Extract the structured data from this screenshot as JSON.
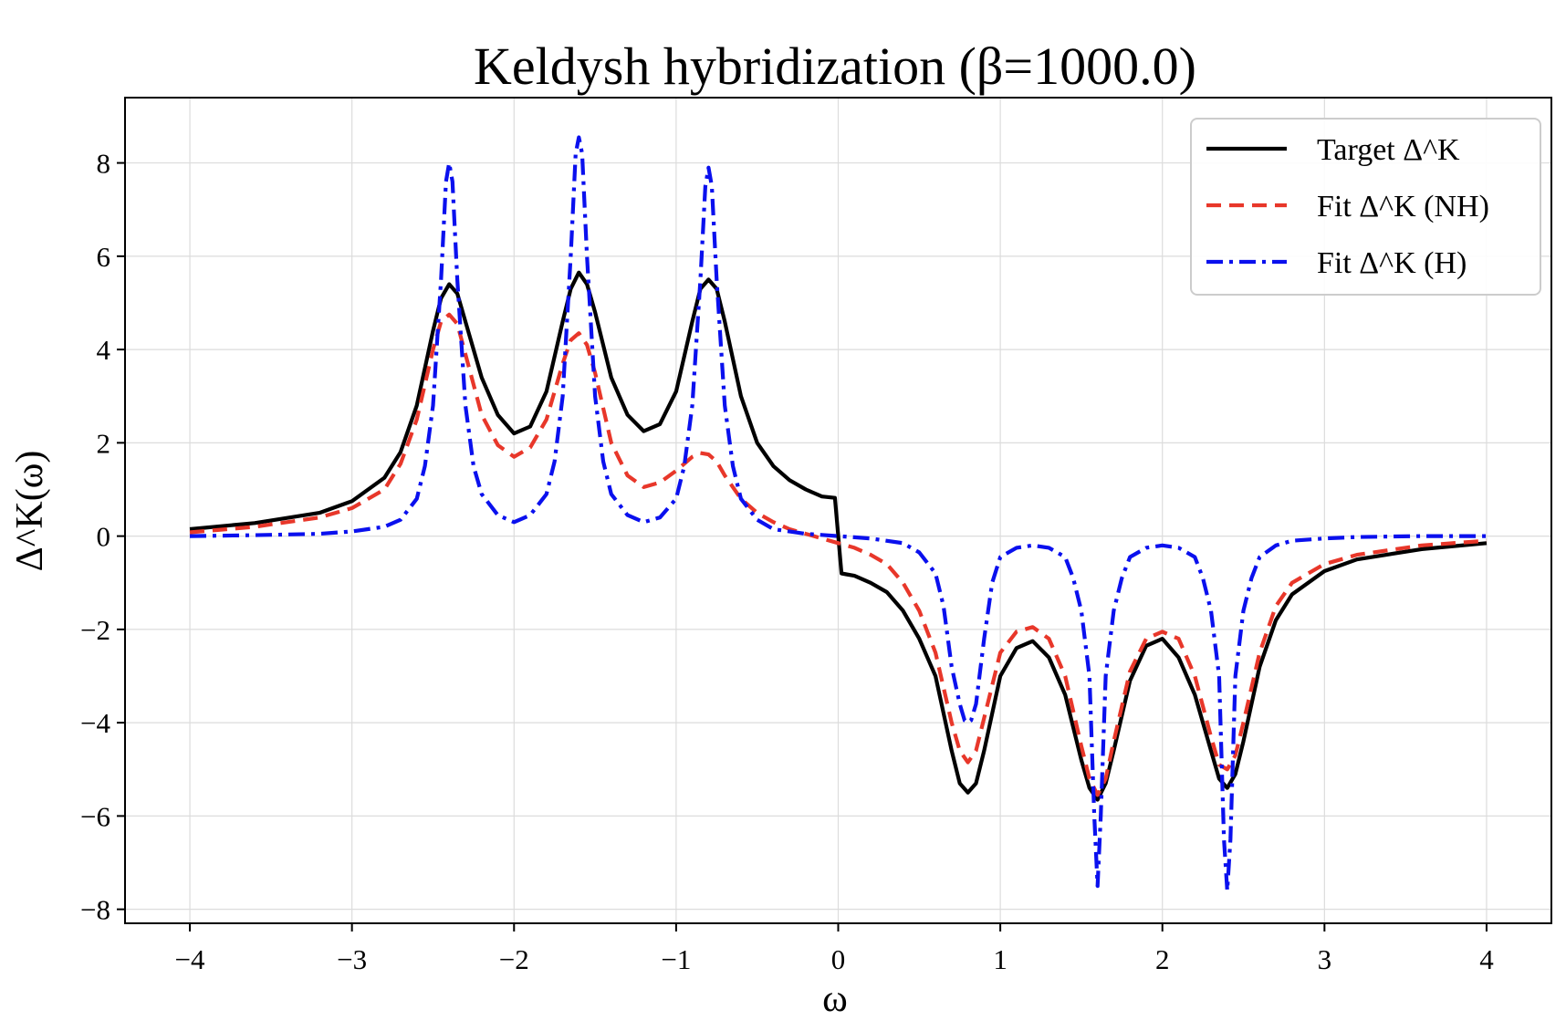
{
  "chart_data": {
    "type": "line",
    "title": "Keldysh hybridization (β=1000.0)",
    "xlabel": "ω",
    "ylabel": "Δ^K(ω)",
    "xlim": [
      -4.4,
      4.4
    ],
    "ylim": [
      -8.3,
      9.4
    ],
    "xticks": [
      -4,
      -3,
      -2,
      -1,
      0,
      1,
      2,
      3,
      4
    ],
    "xtick_labels": [
      "−4",
      "−3",
      "−2",
      "−1",
      "0",
      "1",
      "2",
      "3",
      "4"
    ],
    "yticks": [
      -8,
      -6,
      -4,
      -2,
      0,
      2,
      4,
      6,
      8
    ],
    "ytick_labels": [
      "−8",
      "−6",
      "−4",
      "−2",
      "0",
      "2",
      "4",
      "6",
      "8"
    ],
    "grid": true,
    "legend_position": "top-right",
    "series": [
      {
        "name": "Target Δ^K",
        "color": "#000000",
        "style": "solid",
        "x": [
          -4.0,
          -3.6,
          -3.2,
          -3.0,
          -2.8,
          -2.7,
          -2.6,
          -2.5,
          -2.45,
          -2.4,
          -2.35,
          -2.3,
          -2.2,
          -2.1,
          -2.0,
          -1.9,
          -1.8,
          -1.7,
          -1.65,
          -1.6,
          -1.55,
          -1.5,
          -1.4,
          -1.3,
          -1.2,
          -1.1,
          -1.0,
          -0.9,
          -0.85,
          -0.8,
          -0.75,
          -0.7,
          -0.6,
          -0.5,
          -0.4,
          -0.3,
          -0.2,
          -0.1,
          -0.02,
          0.02,
          0.05,
          0.1,
          0.2,
          0.3,
          0.4,
          0.5,
          0.6,
          0.7,
          0.75,
          0.8,
          0.85,
          0.9,
          1.0,
          1.1,
          1.2,
          1.3,
          1.4,
          1.5,
          1.55,
          1.6,
          1.65,
          1.7,
          1.8,
          1.9,
          2.0,
          2.1,
          2.2,
          2.3,
          2.35,
          2.4,
          2.45,
          2.5,
          2.6,
          2.7,
          2.8,
          3.0,
          3.2,
          3.6,
          4.0
        ],
        "y": [
          0.15,
          0.28,
          0.5,
          0.75,
          1.25,
          1.8,
          2.8,
          4.4,
          5.1,
          5.4,
          5.2,
          4.6,
          3.4,
          2.6,
          2.2,
          2.35,
          3.1,
          4.6,
          5.3,
          5.65,
          5.4,
          4.8,
          3.4,
          2.6,
          2.25,
          2.4,
          3.1,
          4.6,
          5.3,
          5.5,
          5.3,
          4.6,
          3.0,
          2.0,
          1.5,
          1.2,
          1.0,
          0.85,
          0.82,
          -0.8,
          -0.82,
          -0.85,
          -1.0,
          -1.2,
          -1.6,
          -2.2,
          -3.0,
          -4.6,
          -5.3,
          -5.5,
          -5.3,
          -4.6,
          -3.0,
          -2.4,
          -2.25,
          -2.6,
          -3.4,
          -4.8,
          -5.4,
          -5.65,
          -5.3,
          -4.6,
          -3.1,
          -2.35,
          -2.2,
          -2.6,
          -3.4,
          -4.6,
          -5.2,
          -5.4,
          -5.1,
          -4.4,
          -2.8,
          -1.8,
          -1.25,
          -0.75,
          -0.5,
          -0.28,
          -0.15
        ]
      },
      {
        "name": "Fit Δ^K (NH)",
        "color": "#e8372a",
        "style": "dashed",
        "x": [
          -4.0,
          -3.6,
          -3.2,
          -3.0,
          -2.8,
          -2.7,
          -2.6,
          -2.5,
          -2.45,
          -2.4,
          -2.35,
          -2.3,
          -2.2,
          -2.1,
          -2.0,
          -1.9,
          -1.8,
          -1.7,
          -1.65,
          -1.6,
          -1.55,
          -1.5,
          -1.4,
          -1.3,
          -1.2,
          -1.1,
          -1.0,
          -0.9,
          -0.85,
          -0.8,
          -0.75,
          -0.7,
          -0.6,
          -0.5,
          -0.4,
          -0.3,
          -0.2,
          -0.1,
          0.0,
          0.1,
          0.2,
          0.3,
          0.4,
          0.5,
          0.6,
          0.7,
          0.75,
          0.8,
          0.85,
          0.9,
          1.0,
          1.1,
          1.2,
          1.3,
          1.4,
          1.5,
          1.55,
          1.6,
          1.65,
          1.7,
          1.8,
          1.9,
          2.0,
          2.1,
          2.2,
          2.3,
          2.35,
          2.4,
          2.45,
          2.5,
          2.6,
          2.7,
          2.8,
          3.0,
          3.2,
          3.6,
          4.0
        ],
        "y": [
          0.08,
          0.2,
          0.4,
          0.6,
          1.0,
          1.55,
          2.5,
          4.0,
          4.6,
          4.75,
          4.55,
          3.9,
          2.6,
          1.95,
          1.7,
          1.9,
          2.5,
          3.7,
          4.2,
          4.35,
          4.1,
          3.5,
          2.0,
          1.3,
          1.05,
          1.15,
          1.4,
          1.7,
          1.78,
          1.75,
          1.6,
          1.3,
          0.8,
          0.5,
          0.3,
          0.15,
          0.05,
          -0.05,
          -0.15,
          -0.25,
          -0.4,
          -0.6,
          -1.0,
          -1.6,
          -2.5,
          -4.0,
          -4.6,
          -4.85,
          -4.6,
          -3.9,
          -2.5,
          -2.05,
          -1.95,
          -2.2,
          -3.0,
          -4.5,
          -5.2,
          -5.55,
          -5.2,
          -4.4,
          -2.9,
          -2.2,
          -2.05,
          -2.2,
          -3.0,
          -4.3,
          -4.9,
          -5.0,
          -4.7,
          -4.0,
          -2.5,
          -1.5,
          -1.0,
          -0.6,
          -0.4,
          -0.2,
          -0.1
        ]
      },
      {
        "name": "Fit Δ^K (H)",
        "color": "#0a10ee",
        "style": "dashdot",
        "x": [
          -4.0,
          -3.6,
          -3.2,
          -3.0,
          -2.8,
          -2.7,
          -2.6,
          -2.55,
          -2.5,
          -2.45,
          -2.42,
          -2.4,
          -2.38,
          -2.35,
          -2.3,
          -2.25,
          -2.2,
          -2.1,
          -2.0,
          -1.9,
          -1.8,
          -1.75,
          -1.7,
          -1.65,
          -1.62,
          -1.6,
          -1.58,
          -1.55,
          -1.5,
          -1.45,
          -1.4,
          -1.3,
          -1.2,
          -1.1,
          -1.0,
          -0.95,
          -0.9,
          -0.85,
          -0.82,
          -0.8,
          -0.78,
          -0.75,
          -0.7,
          -0.65,
          -0.6,
          -0.5,
          -0.4,
          -0.2,
          0.0,
          0.2,
          0.4,
          0.5,
          0.6,
          0.65,
          0.7,
          0.75,
          0.78,
          0.8,
          0.82,
          0.85,
          0.9,
          0.95,
          1.0,
          1.1,
          1.2,
          1.3,
          1.4,
          1.45,
          1.5,
          1.55,
          1.58,
          1.6,
          1.62,
          1.65,
          1.7,
          1.75,
          1.8,
          1.9,
          2.0,
          2.1,
          2.2,
          2.25,
          2.3,
          2.35,
          2.38,
          2.4,
          2.42,
          2.45,
          2.5,
          2.55,
          2.6,
          2.7,
          2.8,
          3.0,
          3.2,
          3.6,
          4.0
        ],
        "y": [
          0.0,
          0.02,
          0.05,
          0.1,
          0.2,
          0.35,
          0.8,
          1.5,
          2.8,
          5.5,
          7.6,
          8.0,
          7.6,
          5.5,
          2.8,
          1.5,
          0.9,
          0.45,
          0.3,
          0.45,
          0.9,
          1.6,
          3.0,
          6.0,
          8.2,
          8.55,
          8.2,
          6.0,
          3.0,
          1.6,
          0.9,
          0.45,
          0.3,
          0.4,
          0.8,
          1.5,
          2.8,
          5.5,
          7.5,
          7.9,
          7.5,
          5.5,
          2.8,
          1.5,
          0.8,
          0.35,
          0.15,
          0.05,
          0.0,
          -0.05,
          -0.15,
          -0.35,
          -0.8,
          -1.5,
          -2.8,
          -3.6,
          -3.95,
          -4.0,
          -3.95,
          -3.6,
          -2.2,
          -1.0,
          -0.45,
          -0.25,
          -0.2,
          -0.25,
          -0.45,
          -0.9,
          -1.6,
          -3.0,
          -6.0,
          -7.5,
          -6.0,
          -3.0,
          -1.6,
          -0.9,
          -0.45,
          -0.25,
          -0.2,
          -0.25,
          -0.45,
          -0.9,
          -1.6,
          -3.0,
          -6.5,
          -7.6,
          -6.5,
          -3.0,
          -1.6,
          -0.9,
          -0.45,
          -0.2,
          -0.1,
          -0.05,
          -0.02,
          0.0,
          0.0
        ]
      }
    ]
  }
}
